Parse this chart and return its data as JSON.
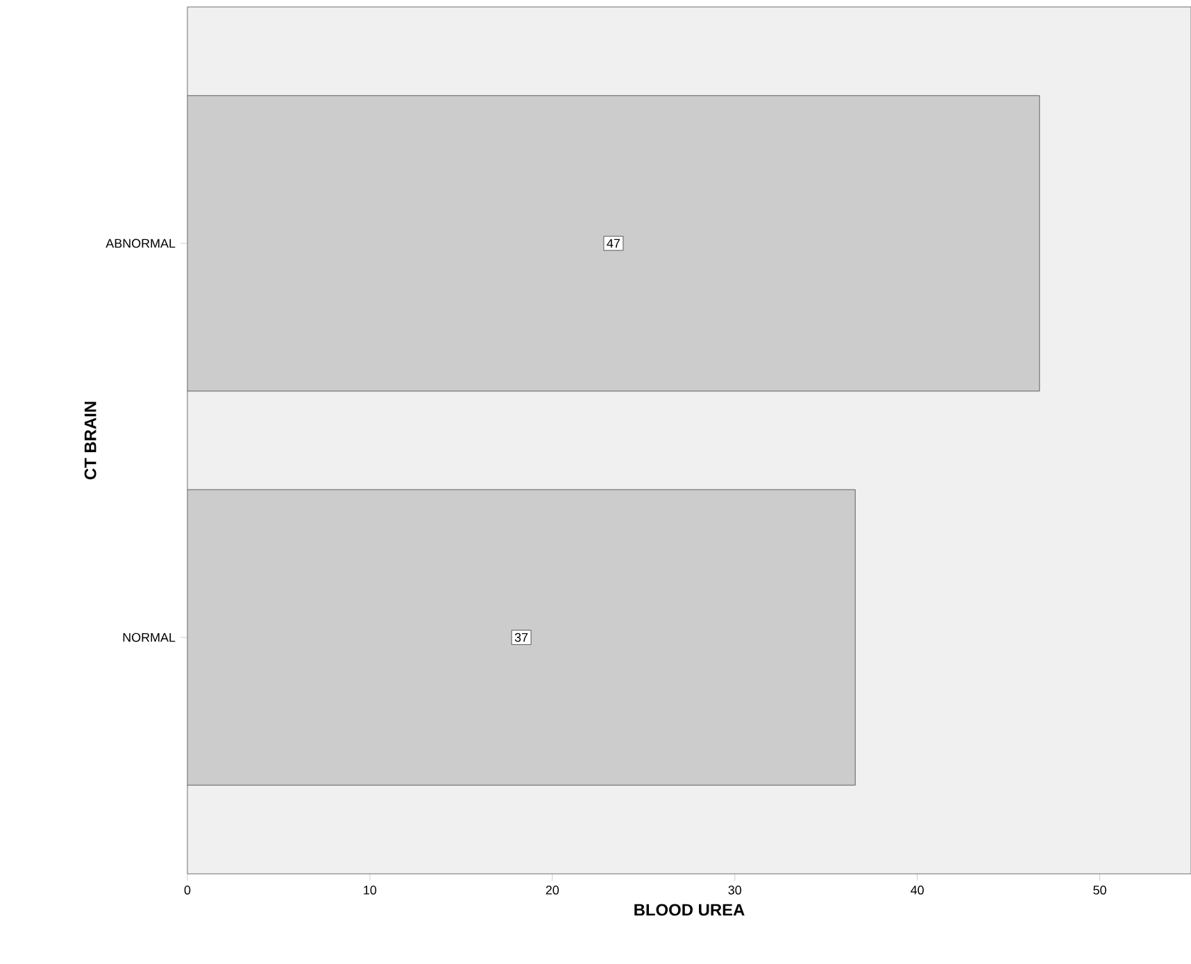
{
  "chart_data": {
    "type": "bar",
    "orientation": "horizontal",
    "xlabel": "BLOOD UREA",
    "ylabel": "CT BRAIN",
    "categories": [
      "ABNORMAL",
      "NORMAL"
    ],
    "values": [
      46.7,
      36.6
    ],
    "value_labels": [
      "47",
      "37"
    ],
    "color": "#cccccc",
    "xlim": [
      0,
      55
    ],
    "xticks": [
      0,
      10,
      20,
      30,
      40,
      50
    ],
    "grid": false
  }
}
